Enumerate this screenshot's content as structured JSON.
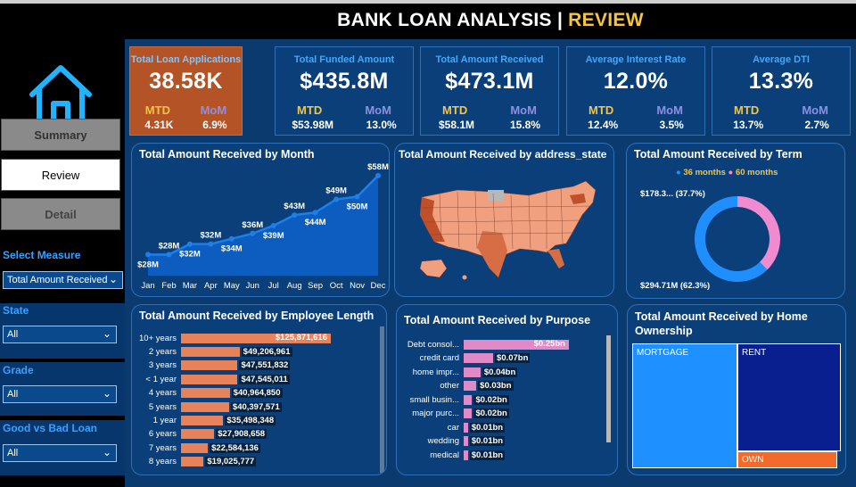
{
  "title": {
    "main": "BANK LOAN ANALYSIS |",
    "accent": "REVIEW"
  },
  "nav": {
    "summary": "Summary",
    "review": "Review",
    "detail": "Detail"
  },
  "filters": {
    "measure": {
      "label": "Select Measure",
      "value": "Total Amount Received"
    },
    "state": {
      "label": "State",
      "value": "All"
    },
    "grade": {
      "label": "Grade",
      "value": "All"
    },
    "goodbad": {
      "label": "Good vs Bad Loan",
      "value": "All"
    }
  },
  "kpis": [
    {
      "title": "Total Loan Applications",
      "value": "38.58K",
      "mtd_label": "MTD",
      "mom_label": "MoM",
      "mtd": "4.31K",
      "mom": "6.9%"
    },
    {
      "title": "Total Funded Amount",
      "value": "$435.8M",
      "mtd_label": "MTD",
      "mom_label": "MoM",
      "mtd": "$53.98M",
      "mom": "13.0%"
    },
    {
      "title": "Total Amount Received",
      "value": "$473.1M",
      "mtd_label": "MTD",
      "mom_label": "MoM",
      "mtd": "$58.1M",
      "mom": "15.8%"
    },
    {
      "title": "Average Interest Rate",
      "value": "12.0%",
      "mtd_label": "MTD",
      "mom_label": "MoM",
      "mtd": "12.4%",
      "mom": "3.5%"
    },
    {
      "title": "Average DTI",
      "value": "13.3%",
      "mtd_label": "MTD",
      "mom_label": "MoM",
      "mtd": "13.7%",
      "mom": "2.7%"
    }
  ],
  "panels": {
    "month": "Total Amount Received by Month",
    "state": "Total Amount Received by address_state",
    "term": "Total Amount Received by Term",
    "emp": "Total Amount Received by Employee Length",
    "purpose": "Total Amount Received by Purpose",
    "home": "Total Amount Received by Home Ownership"
  },
  "chart_data": [
    {
      "type": "area",
      "title": "Total Amount Received by Month",
      "categories": [
        "Jan",
        "Feb",
        "Mar",
        "Apr",
        "May",
        "Jun",
        "Jul",
        "Aug",
        "Sep",
        "Oct",
        "Nov",
        "Dec"
      ],
      "values": [
        28,
        28,
        32,
        32,
        34,
        36,
        39,
        43,
        44,
        49,
        50,
        58
      ],
      "labels": [
        "$28M",
        "$28M",
        "$32M",
        "$32M",
        "$34M",
        "$36M",
        "$39M",
        "$43M",
        "$44M",
        "$49M",
        "$50M",
        "$58M"
      ],
      "ylim": [
        20,
        60
      ],
      "color": "#1f7fe8"
    },
    {
      "type": "pie",
      "title": "Total Amount Received by Term",
      "legend": [
        "36 months",
        "60 months"
      ],
      "values": [
        294.71,
        178.3
      ],
      "labels": [
        "$294.71M (62.3%)",
        "$178.3... (37.7%)"
      ],
      "colors": [
        "#1f8fff",
        "#f08bd0"
      ]
    },
    {
      "type": "bar",
      "title": "Total Amount Received by Employee Length",
      "categories": [
        "10+ years",
        "2 years",
        "3 years",
        "< 1 year",
        "4 years",
        "5 years",
        "1 year",
        "6 years",
        "7 years",
        "8 years"
      ],
      "values": [
        125871616,
        49206961,
        47551832,
        47545011,
        40964850,
        40397571,
        35498348,
        27908658,
        22584136,
        19025777
      ],
      "labels": [
        "$125,871,616",
        "$49,206,961",
        "$47,551,832",
        "$47,545,011",
        "$40,964,850",
        "$40,397,571",
        "$35,498,348",
        "$27,908,658",
        "$22,584,136",
        "$19,025,777"
      ],
      "color": "#e8825a"
    },
    {
      "type": "bar",
      "title": "Total Amount Received by Purpose",
      "categories": [
        "Debt consol...",
        "credit card",
        "home impr...",
        "other",
        "small busin...",
        "major purc...",
        "car",
        "wedding",
        "medical"
      ],
      "values": [
        0.25,
        0.07,
        0.04,
        0.03,
        0.02,
        0.02,
        0.01,
        0.01,
        0.01
      ],
      "labels": [
        "$0.25bn",
        "$0.07bn",
        "$0.04bn",
        "$0.03bn",
        "$0.02bn",
        "$0.02bn",
        "$0.01bn",
        "$0.01bn",
        "$0.01bn"
      ],
      "color": "#e08ac8"
    },
    {
      "type": "heatmap",
      "title": "Total Amount Received by Home Ownership",
      "categories": [
        "MORTGAGE",
        "RENT",
        "OWN"
      ],
      "colors": [
        "#1e90ff",
        "#0a1f8f",
        "#f26b2a"
      ]
    }
  ]
}
